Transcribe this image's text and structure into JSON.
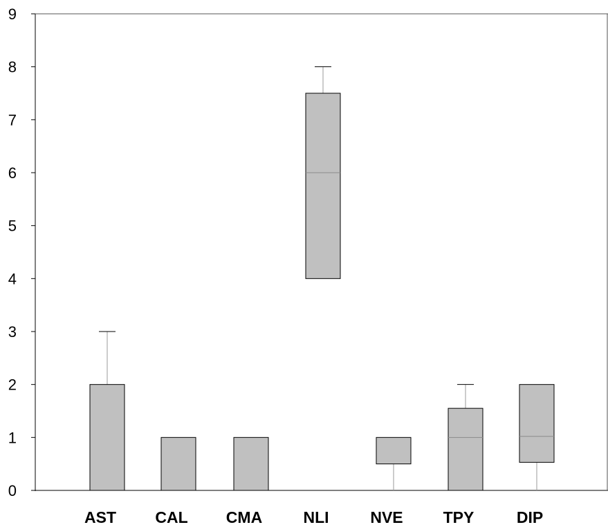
{
  "chart_data": {
    "type": "box",
    "title": "",
    "xlabel": "",
    "ylabel": "",
    "ylim": [
      0,
      9
    ],
    "yticks": [
      "0",
      "1",
      "2",
      "3",
      "4",
      "5",
      "6",
      "7",
      "8",
      "9"
    ],
    "grid": false,
    "legend": "none",
    "box_color": "#c0c0c0",
    "categories": [
      "AST",
      "CAL",
      "CMA",
      "NLI",
      "NVE",
      "TPY",
      "DIP"
    ],
    "boxes": [
      {
        "category": "AST",
        "min": 0,
        "q1": 0,
        "median": 0,
        "q3": 2,
        "max": 3
      },
      {
        "category": "CAL",
        "min": 0,
        "q1": 0,
        "median": 1,
        "q3": 1,
        "max": 1
      },
      {
        "category": "CMA",
        "min": 0,
        "q1": 0,
        "median": 1,
        "q3": 1,
        "max": 1
      },
      {
        "category": "NLI",
        "min": 4,
        "q1": 4,
        "median": 6,
        "q3": 7.5,
        "max": 8
      },
      {
        "category": "NVE",
        "min": 0,
        "q1": 0.5,
        "median": 1,
        "q3": 1,
        "max": 1
      },
      {
        "category": "TPY",
        "min": 0,
        "q1": 0,
        "median": 1,
        "q3": 1.55,
        "max": 2
      },
      {
        "category": "DIP",
        "min": 0,
        "q1": 0.53,
        "median": 1.02,
        "q3": 2,
        "max": 2
      }
    ]
  }
}
